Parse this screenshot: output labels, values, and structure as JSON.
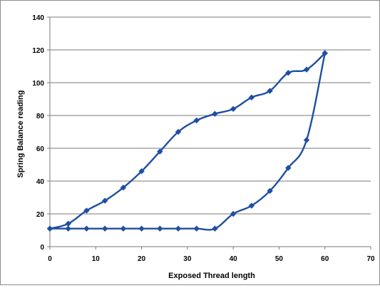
{
  "chart_data": {
    "type": "line",
    "title": "",
    "xlabel": "Exposed Thread length",
    "ylabel": "Spring Balance reading",
    "xlim": [
      0,
      70
    ],
    "ylim": [
      0,
      140
    ],
    "x_ticks": [
      0,
      10,
      20,
      30,
      40,
      50,
      60,
      70
    ],
    "y_ticks": [
      0,
      20,
      40,
      60,
      80,
      100,
      120,
      140
    ],
    "grid": "horizontal",
    "legend": "none",
    "color": "#1f4fa3",
    "marker": "diamond",
    "series": [
      {
        "x": [
          0,
          4,
          8,
          12,
          16,
          20,
          24,
          28,
          32,
          36,
          40,
          44,
          48,
          52,
          56,
          60
        ],
        "y": [
          11,
          14,
          22,
          28,
          36,
          46,
          58,
          70,
          77,
          81,
          84,
          91,
          95,
          106,
          108,
          118
        ]
      },
      {
        "x": [
          60,
          56,
          52,
          48,
          44,
          40,
          36,
          32,
          28,
          24,
          20,
          16,
          12,
          8,
          4,
          0
        ],
        "y": [
          118,
          65,
          48,
          34,
          25,
          20,
          11,
          11,
          11,
          11,
          11,
          11,
          11,
          11,
          11,
          11
        ]
      }
    ]
  }
}
